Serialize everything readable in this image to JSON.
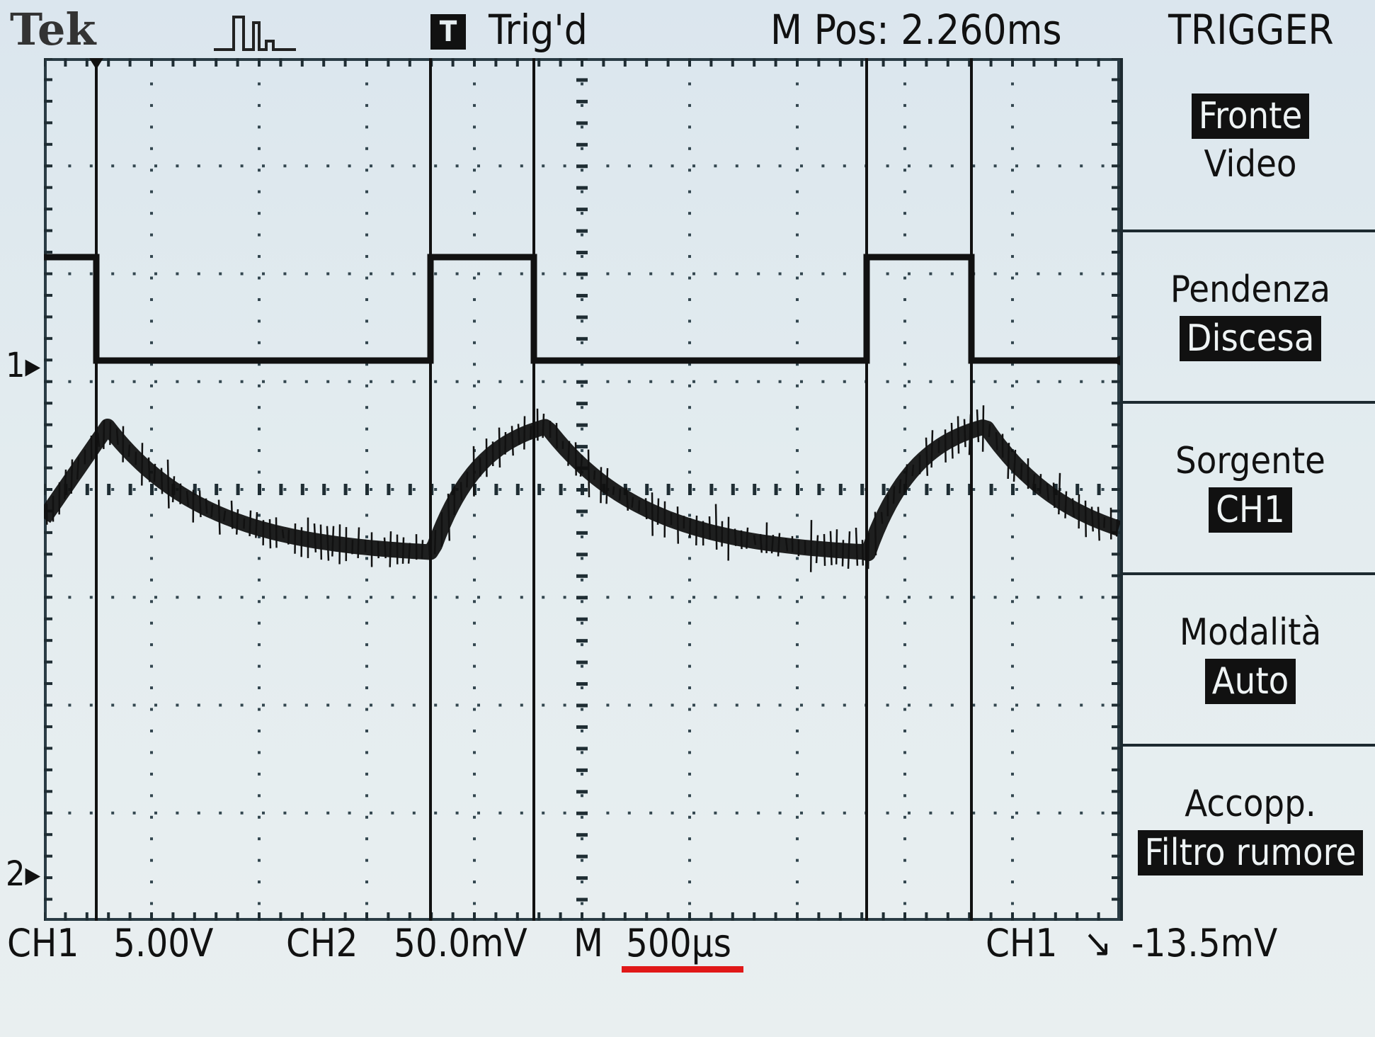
{
  "header": {
    "brand": "Tek",
    "trigger_badge": "T",
    "trigger_status": "Trig'd",
    "main_position": "M Pos: 2.260ms",
    "menu_title": "TRIGGER"
  },
  "menu": [
    {
      "label": "",
      "value": "Fronte",
      "value2": "Video",
      "highlighted": "value"
    },
    {
      "label": "Pendenza",
      "value": "Discesa",
      "highlighted": "value"
    },
    {
      "label": "Sorgente",
      "value": "CH1",
      "highlighted": "value"
    },
    {
      "label": "Modalità",
      "value": "Auto",
      "highlighted": "value"
    },
    {
      "label": "Accopp.",
      "value": "Filtro rumore",
      "highlighted": "value"
    }
  ],
  "status_bar": {
    "ch1_label": "CH1",
    "ch1_scale": "5.00V",
    "ch2_label": "CH2",
    "ch2_scale": "50.0mV",
    "time_label": "M",
    "time_scale": "500µs",
    "trig_source": "CH1",
    "trig_slope_symbol": "↘",
    "trig_level": "-13.5mV"
  },
  "markers": {
    "ch1": "1",
    "ch2": "2"
  },
  "colors": {
    "trace": "#111111",
    "highlight_bg": "#111111",
    "underline": "#e01818",
    "screen_bg": "#dfe8ec"
  }
}
